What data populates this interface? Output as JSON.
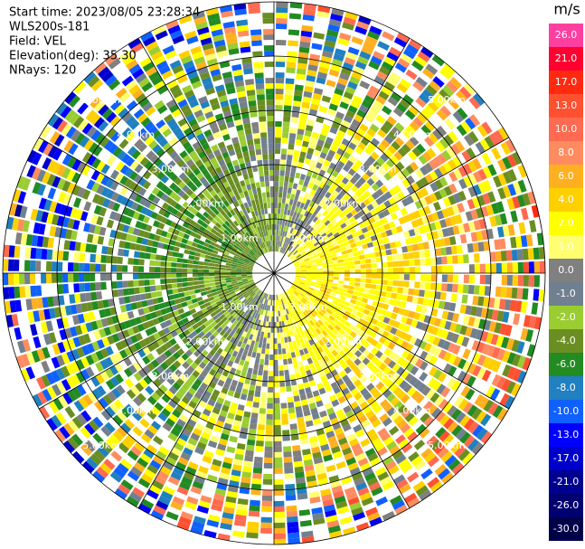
{
  "header": {
    "lines": [
      "Start time: 2023/08/05 23:28:34",
      "WLS200s-181",
      "Field: VEL",
      "Elevation(deg): 35.30",
      "NRays: 120"
    ]
  },
  "ring_labels": [
    "1.00km",
    "2.00km",
    "3.00km",
    "4.00km",
    "5.00km"
  ],
  "colorbar": {
    "unit": "m/s",
    "ticks": [
      {
        "value": 26,
        "label": "26.0",
        "color": "#ff3fa0"
      },
      {
        "value": 21,
        "label": "21.0",
        "color": "#ff0030"
      },
      {
        "value": 17,
        "label": "17.0",
        "color": "#ff2a10"
      },
      {
        "value": 13,
        "label": "13.0",
        "color": "#ff5030"
      },
      {
        "value": 10,
        "label": "10.0",
        "color": "#ff6a50"
      },
      {
        "value": 8,
        "label": "8.0",
        "color": "#ff8c60"
      },
      {
        "value": 6,
        "label": "6.0",
        "color": "#ffb020"
      },
      {
        "value": 4,
        "label": "4.0",
        "color": "#ffd000"
      },
      {
        "value": 2,
        "label": "2.0",
        "color": "#ffff00"
      },
      {
        "value": 1,
        "label": "1.0",
        "color": "#ffff70"
      },
      {
        "value": 0,
        "label": "0.0",
        "color": "#808080"
      },
      {
        "value": -1,
        "label": "-1.0",
        "color": "#708090"
      },
      {
        "value": -2,
        "label": "-2.0",
        "color": "#9acd32"
      },
      {
        "value": -4,
        "label": "-4.0",
        "color": "#6b8e23"
      },
      {
        "value": -6,
        "label": "-6.0",
        "color": "#228b22"
      },
      {
        "value": -8,
        "label": "-8.0",
        "color": "#2080c0"
      },
      {
        "value": -10,
        "label": "-10.0",
        "color": "#1060ff"
      },
      {
        "value": -13,
        "label": "-13.0",
        "color": "#0000ff"
      },
      {
        "value": -17,
        "label": "-17.0",
        "color": "#0000cd"
      },
      {
        "value": -21,
        "label": "-21.0",
        "color": "#000090"
      },
      {
        "value": -26,
        "label": "-26.0",
        "color": "#000070"
      },
      {
        "value": -30,
        "label": "-30.0",
        "color": "#000048"
      }
    ]
  }
}
